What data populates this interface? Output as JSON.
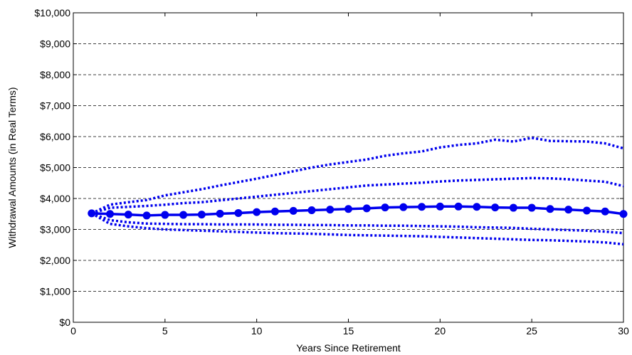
{
  "chart_data": {
    "type": "line",
    "title": "",
    "xlabel": "Years Since Retirement",
    "ylabel": "Withdrawal Amounts (in Real Terms)",
    "xlim": [
      0,
      30
    ],
    "ylim": [
      0,
      10000
    ],
    "xticks": [
      0,
      5,
      10,
      15,
      20,
      25,
      30
    ],
    "xtick_labels": [
      "0",
      "5",
      "10",
      "15",
      "20",
      "25",
      "30"
    ],
    "yticks": [
      0,
      1000,
      2000,
      3000,
      4000,
      5000,
      6000,
      7000,
      8000,
      9000,
      10000
    ],
    "ytick_labels": [
      "$0",
      "$1,000",
      "$2,000",
      "$3,000",
      "$4,000",
      "$5,000",
      "$6,000",
      "$7,000",
      "$8,000",
      "$9,000",
      "$10,000"
    ],
    "grid": {
      "y": "dashed",
      "x": "none"
    },
    "line_color": "#0000ee",
    "x": [
      1,
      2,
      3,
      4,
      5,
      6,
      7,
      8,
      9,
      10,
      11,
      12,
      13,
      14,
      15,
      16,
      17,
      18,
      19,
      20,
      21,
      22,
      23,
      24,
      25,
      26,
      27,
      28,
      29,
      30
    ],
    "series": [
      {
        "style": "solid-markers",
        "values": [
          3520,
          3500,
          3480,
          3450,
          3470,
          3470,
          3480,
          3510,
          3530,
          3560,
          3580,
          3600,
          3620,
          3640,
          3660,
          3680,
          3710,
          3720,
          3730,
          3740,
          3740,
          3730,
          3710,
          3700,
          3700,
          3660,
          3640,
          3610,
          3580,
          3500
        ]
      },
      {
        "style": "dotted",
        "values": [
          3520,
          3800,
          3880,
          3950,
          4100,
          4200,
          4300,
          4420,
          4530,
          4640,
          4760,
          4880,
          5000,
          5100,
          5180,
          5260,
          5380,
          5460,
          5520,
          5650,
          5730,
          5780,
          5900,
          5840,
          5960,
          5860,
          5850,
          5840,
          5780,
          5620
        ]
      },
      {
        "style": "dotted",
        "values": [
          3520,
          3700,
          3730,
          3760,
          3800,
          3850,
          3880,
          3940,
          4000,
          4060,
          4120,
          4180,
          4240,
          4300,
          4360,
          4420,
          4450,
          4480,
          4510,
          4550,
          4580,
          4600,
          4620,
          4640,
          4660,
          4650,
          4620,
          4580,
          4540,
          4400
        ]
      },
      {
        "style": "dotted",
        "values": [
          3520,
          3300,
          3230,
          3190,
          3180,
          3170,
          3170,
          3160,
          3160,
          3160,
          3150,
          3150,
          3140,
          3140,
          3130,
          3130,
          3120,
          3120,
          3110,
          3100,
          3090,
          3070,
          3060,
          3050,
          3020,
          3000,
          2980,
          2960,
          2930,
          2880
        ]
      },
      {
        "style": "dotted",
        "values": [
          3520,
          3180,
          3100,
          3040,
          3000,
          2980,
          2960,
          2940,
          2920,
          2900,
          2880,
          2870,
          2860,
          2840,
          2820,
          2810,
          2800,
          2790,
          2780,
          2760,
          2740,
          2720,
          2700,
          2680,
          2660,
          2650,
          2630,
          2610,
          2580,
          2520
        ]
      }
    ]
  }
}
